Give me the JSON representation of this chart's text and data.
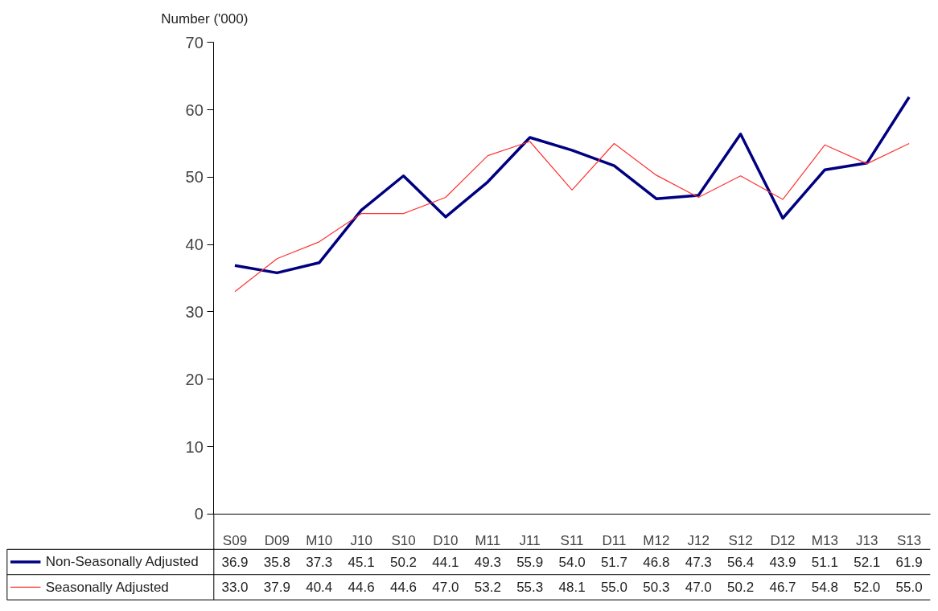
{
  "chart_data": {
    "type": "line",
    "ylabel": "Number ('000)",
    "categories": [
      "S09",
      "D09",
      "M10",
      "J10",
      "S10",
      "D10",
      "M11",
      "J11",
      "S11",
      "D11",
      "M12",
      "J12",
      "S12",
      "D12",
      "M13",
      "J13",
      "S13"
    ],
    "series": [
      {
        "name": "Non-Seasonally Adjusted",
        "color": "#000080",
        "values": [
          36.9,
          35.8,
          37.3,
          45.1,
          50.2,
          44.1,
          49.3,
          55.9,
          54.0,
          51.7,
          46.8,
          47.3,
          56.4,
          43.9,
          51.1,
          52.1,
          61.9
        ],
        "value_labels": [
          "36.9",
          "35.8",
          "37.3",
          "45.1",
          "50.2",
          "44.1",
          "49.3",
          "55.9",
          "54.0",
          "51.7",
          "46.8",
          "47.3",
          "56.4",
          "43.9",
          "51.1",
          "52.1",
          "61.9"
        ]
      },
      {
        "name": "Seasonally Adjusted",
        "color": "#ff3333",
        "values": [
          33.0,
          37.9,
          40.4,
          44.6,
          44.6,
          47.0,
          53.2,
          55.3,
          48.1,
          55.0,
          50.3,
          47.0,
          50.2,
          46.7,
          54.8,
          52.0,
          55.0
        ],
        "value_labels": [
          "33.0",
          "37.9",
          "40.4",
          "44.6",
          "44.6",
          "47.0",
          "53.2",
          "55.3",
          "48.1",
          "55.0",
          "50.3",
          "47.0",
          "50.2",
          "46.7",
          "54.8",
          "52.0",
          "55.0"
        ]
      }
    ],
    "ylim": [
      0,
      70
    ],
    "yticks": [
      0,
      10,
      20,
      30,
      40,
      50,
      60,
      70
    ],
    "grid": false,
    "legend": "bottom left",
    "marker": "none",
    "line_style": "solid"
  }
}
